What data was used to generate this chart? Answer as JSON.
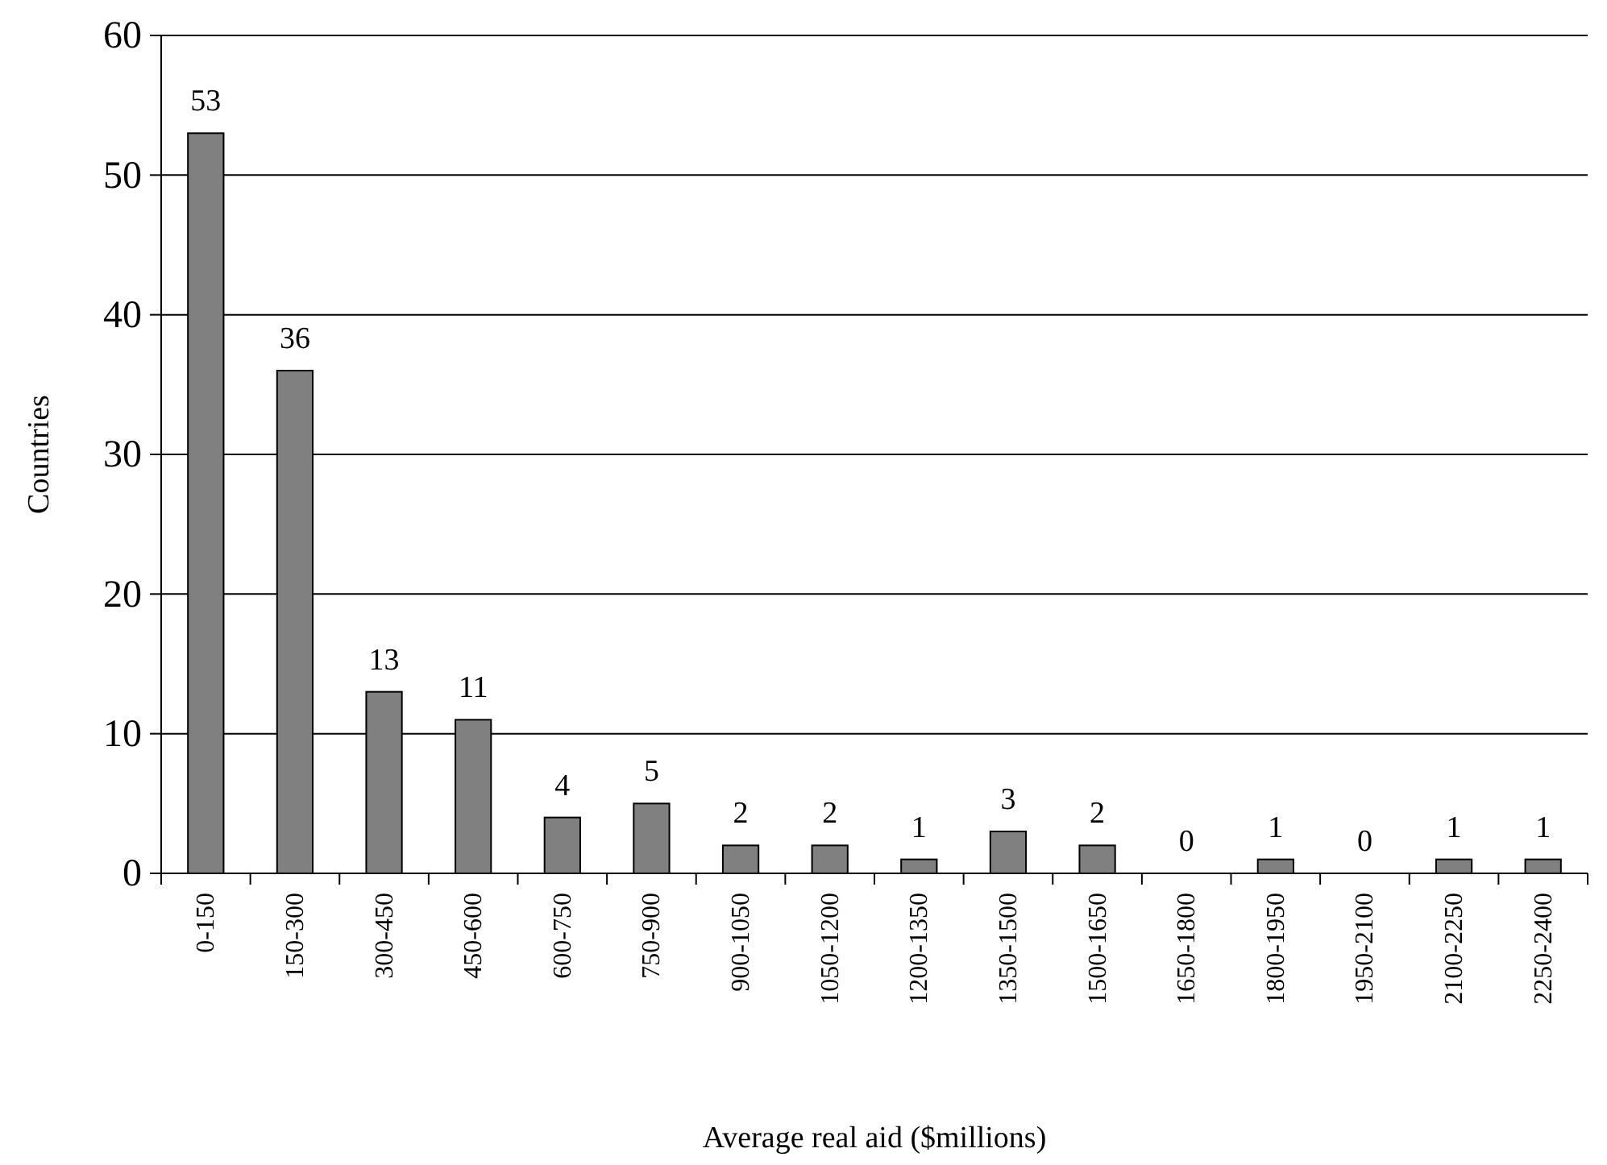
{
  "chart_data": {
    "type": "bar",
    "xlabel": "Average real aid ($millions)",
    "ylabel": "Countries",
    "categories": [
      "0-150",
      "150-300",
      "300-450",
      "450-600",
      "600-750",
      "750-900",
      "900-1050",
      "1050-1200",
      "1200-1350",
      "1350-1500",
      "1500-1650",
      "1650-1800",
      "1800-1950",
      "1950-2100",
      "2100-2250",
      "2250-2400"
    ],
    "values": [
      53,
      36,
      13,
      11,
      4,
      5,
      2,
      2,
      1,
      3,
      2,
      0,
      1,
      0,
      1,
      1
    ],
    "color": "#808080",
    "ylim": [
      0,
      60
    ],
    "yticks": [
      0,
      10,
      20,
      30,
      40,
      50,
      60
    ],
    "grid": "y",
    "data_labels": true
  }
}
